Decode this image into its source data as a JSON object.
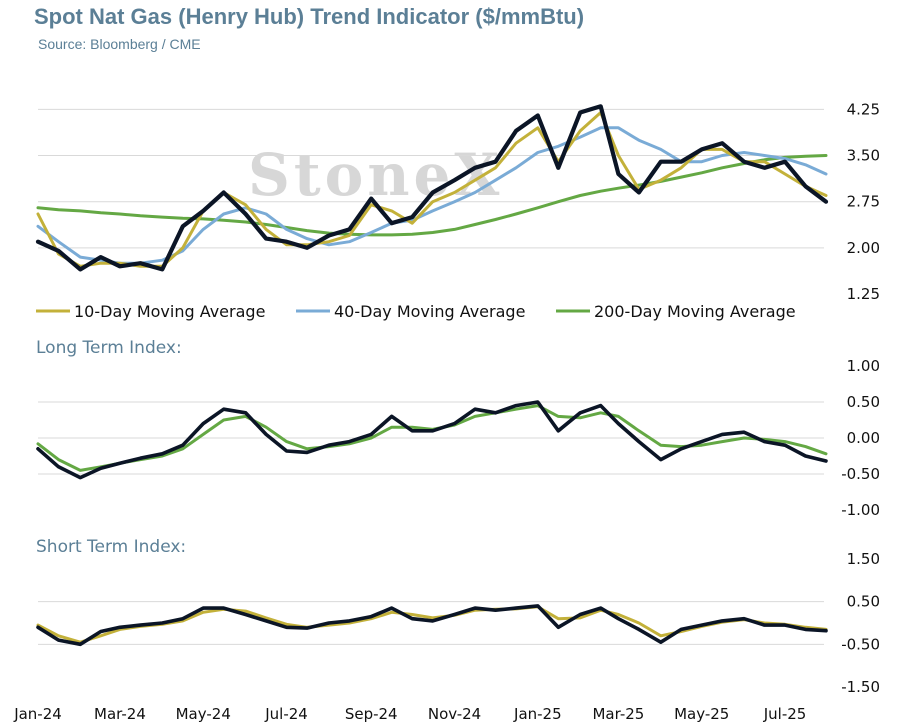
{
  "title": "Spot Nat Gas (Henry Hub) Trend Indicator ($/mmBtu)",
  "source": "Source: Bloomberg / CME",
  "watermark": "StoneX",
  "colors": {
    "spot": "#0b1526",
    "ma10": "#c3b13a",
    "ma40": "#7aabd6",
    "ma200": "#64a844",
    "title": "#5b7f96"
  },
  "chart_data": [
    {
      "type": "line",
      "panel": "price",
      "title": "Spot Nat Gas (Henry Hub) Trend Indicator ($/mmBtu)",
      "ylim": [
        1.25,
        4.5
      ],
      "yticks": [
        "4.25",
        "3.50",
        "2.75",
        "2.00",
        "1.25"
      ],
      "grid": true,
      "legend": "bottom",
      "x": [
        "2024-01-01",
        "2024-01-16",
        "2024-02-01",
        "2024-02-16",
        "2024-03-01",
        "2024-03-16",
        "2024-04-01",
        "2024-04-16",
        "2024-05-01",
        "2024-05-16",
        "2024-06-01",
        "2024-06-16",
        "2024-07-01",
        "2024-07-16",
        "2024-08-01",
        "2024-08-16",
        "2024-09-01",
        "2024-09-16",
        "2024-10-01",
        "2024-10-16",
        "2024-11-01",
        "2024-11-16",
        "2024-12-01",
        "2024-12-16",
        "2025-01-01",
        "2025-01-16",
        "2025-02-01",
        "2025-02-16",
        "2025-03-01",
        "2025-03-16",
        "2025-04-01",
        "2025-04-16",
        "2025-05-01",
        "2025-05-16",
        "2025-06-01",
        "2025-06-16",
        "2025-07-01",
        "2025-07-16",
        "2025-07-31"
      ],
      "series": [
        {
          "name": "Spot",
          "values": [
            2.1,
            1.95,
            1.65,
            1.85,
            1.7,
            1.75,
            1.65,
            2.35,
            2.6,
            2.9,
            2.55,
            2.15,
            2.1,
            2.0,
            2.2,
            2.3,
            2.8,
            2.4,
            2.5,
            2.9,
            3.1,
            3.3,
            3.4,
            3.9,
            4.15,
            3.3,
            4.2,
            4.3,
            3.2,
            2.9,
            3.4,
            3.4,
            3.6,
            3.7,
            3.4,
            3.3,
            3.4,
            3.0,
            2.75
          ]
        },
        {
          "name": "10-Day Moving Average",
          "values": [
            2.55,
            1.9,
            1.7,
            1.75,
            1.75,
            1.7,
            1.7,
            2.0,
            2.6,
            2.9,
            2.7,
            2.3,
            2.05,
            2.05,
            2.1,
            2.2,
            2.7,
            2.6,
            2.4,
            2.75,
            2.9,
            3.1,
            3.3,
            3.7,
            3.95,
            3.4,
            3.9,
            4.2,
            3.5,
            2.95,
            3.1,
            3.3,
            3.6,
            3.6,
            3.4,
            3.4,
            3.2,
            3.0,
            2.85
          ]
        },
        {
          "name": "40-Day Moving Average",
          "values": [
            2.35,
            2.1,
            1.85,
            1.8,
            1.75,
            1.75,
            1.8,
            1.95,
            2.3,
            2.55,
            2.65,
            2.55,
            2.3,
            2.15,
            2.05,
            2.1,
            2.25,
            2.4,
            2.45,
            2.6,
            2.75,
            2.9,
            3.1,
            3.3,
            3.55,
            3.65,
            3.8,
            3.95,
            3.95,
            3.75,
            3.6,
            3.4,
            3.4,
            3.5,
            3.55,
            3.5,
            3.45,
            3.35,
            3.2
          ]
        },
        {
          "name": "200-Day Moving Average",
          "values": [
            2.65,
            2.62,
            2.6,
            2.57,
            2.55,
            2.52,
            2.5,
            2.48,
            2.47,
            2.45,
            2.42,
            2.38,
            2.33,
            2.28,
            2.24,
            2.22,
            2.21,
            2.21,
            2.22,
            2.25,
            2.3,
            2.38,
            2.46,
            2.55,
            2.65,
            2.75,
            2.85,
            2.92,
            2.97,
            3.02,
            3.08,
            3.15,
            3.22,
            3.3,
            3.37,
            3.43,
            3.47,
            3.49,
            3.5
          ]
        }
      ]
    },
    {
      "type": "line",
      "panel": "long",
      "title": "Long Term Index:",
      "ylim": [
        -1.0,
        1.0
      ],
      "yticks": [
        "1.00",
        "0.50",
        "0.00",
        "-0.50",
        "-1.00"
      ],
      "grid": true,
      "x": [
        "2024-01-01",
        "2024-01-16",
        "2024-02-01",
        "2024-02-16",
        "2024-03-01",
        "2024-03-16",
        "2024-04-01",
        "2024-04-16",
        "2024-05-01",
        "2024-05-16",
        "2024-06-01",
        "2024-06-16",
        "2024-07-01",
        "2024-07-16",
        "2024-08-01",
        "2024-08-16",
        "2024-09-01",
        "2024-09-16",
        "2024-10-01",
        "2024-10-16",
        "2024-11-01",
        "2024-11-16",
        "2024-12-01",
        "2024-12-16",
        "2025-01-01",
        "2025-01-16",
        "2025-02-01",
        "2025-02-16",
        "2025-03-01",
        "2025-03-16",
        "2025-04-01",
        "2025-04-16",
        "2025-05-01",
        "2025-05-16",
        "2025-06-01",
        "2025-06-16",
        "2025-07-01",
        "2025-07-16",
        "2025-07-31"
      ],
      "series": [
        {
          "name": "Long Term Index (black)",
          "values": [
            -0.15,
            -0.4,
            -0.55,
            -0.42,
            -0.35,
            -0.28,
            -0.22,
            -0.1,
            0.2,
            0.4,
            0.35,
            0.05,
            -0.18,
            -0.2,
            -0.1,
            -0.05,
            0.05,
            0.3,
            0.1,
            0.1,
            0.2,
            0.4,
            0.35,
            0.45,
            0.5,
            0.1,
            0.35,
            0.45,
            0.2,
            -0.05,
            -0.3,
            -0.15,
            -0.05,
            0.05,
            0.08,
            -0.05,
            -0.1,
            -0.25,
            -0.32
          ]
        },
        {
          "name": "Long Term Index (green)",
          "values": [
            -0.08,
            -0.3,
            -0.45,
            -0.4,
            -0.35,
            -0.3,
            -0.25,
            -0.15,
            0.05,
            0.25,
            0.3,
            0.15,
            -0.05,
            -0.15,
            -0.12,
            -0.08,
            0.0,
            0.15,
            0.15,
            0.12,
            0.18,
            0.3,
            0.35,
            0.4,
            0.45,
            0.3,
            0.28,
            0.35,
            0.3,
            0.1,
            -0.1,
            -0.12,
            -0.1,
            -0.05,
            0.0,
            -0.02,
            -0.05,
            -0.12,
            -0.22
          ]
        }
      ]
    },
    {
      "type": "line",
      "panel": "short",
      "title": "Short Term Index:",
      "ylim": [
        -1.5,
        1.5
      ],
      "yticks": [
        "1.50",
        "0.50",
        "-0.50",
        "-1.50"
      ],
      "grid": true,
      "x": [
        "2024-01-01",
        "2024-01-16",
        "2024-02-01",
        "2024-02-16",
        "2024-03-01",
        "2024-03-16",
        "2024-04-01",
        "2024-04-16",
        "2024-05-01",
        "2024-05-16",
        "2024-06-01",
        "2024-06-16",
        "2024-07-01",
        "2024-07-16",
        "2024-08-01",
        "2024-08-16",
        "2024-09-01",
        "2024-09-16",
        "2024-10-01",
        "2024-10-16",
        "2024-11-01",
        "2024-11-16",
        "2024-12-01",
        "2024-12-16",
        "2025-01-01",
        "2025-01-16",
        "2025-02-01",
        "2025-02-16",
        "2025-03-01",
        "2025-03-16",
        "2025-04-01",
        "2025-04-16",
        "2025-05-01",
        "2025-05-16",
        "2025-06-01",
        "2025-06-16",
        "2025-07-01",
        "2025-07-16",
        "2025-07-31"
      ],
      "series": [
        {
          "name": "Short Term Index (black)",
          "values": [
            -0.1,
            -0.4,
            -0.5,
            -0.2,
            -0.1,
            -0.05,
            0.0,
            0.1,
            0.35,
            0.35,
            0.2,
            0.05,
            -0.1,
            -0.12,
            0.0,
            0.05,
            0.15,
            0.35,
            0.1,
            0.05,
            0.2,
            0.35,
            0.3,
            0.35,
            0.4,
            -0.1,
            0.2,
            0.35,
            0.1,
            -0.15,
            -0.45,
            -0.15,
            -0.05,
            0.05,
            0.1,
            -0.05,
            -0.05,
            -0.15,
            -0.18
          ]
        },
        {
          "name": "Short Term Index (gold)",
          "values": [
            -0.05,
            -0.3,
            -0.45,
            -0.3,
            -0.15,
            -0.08,
            -0.03,
            0.05,
            0.25,
            0.32,
            0.28,
            0.12,
            -0.03,
            -0.1,
            -0.05,
            0.0,
            0.1,
            0.25,
            0.2,
            0.12,
            0.18,
            0.3,
            0.32,
            0.33,
            0.38,
            0.1,
            0.12,
            0.3,
            0.2,
            0.0,
            -0.3,
            -0.2,
            -0.08,
            0.02,
            0.08,
            0.0,
            -0.03,
            -0.1,
            -0.15
          ]
        }
      ]
    }
  ],
  "legend": [
    {
      "label": "10-Day Moving Average",
      "color": "#c3b13a"
    },
    {
      "label": "40-Day Moving Average",
      "color": "#7aabd6"
    },
    {
      "label": "200-Day Moving Average",
      "color": "#64a844"
    }
  ],
  "xticks": [
    {
      "label": "Jan-24",
      "date": "2024-01-01"
    },
    {
      "label": "Mar-24",
      "date": "2024-03-01"
    },
    {
      "label": "May-24",
      "date": "2024-05-01"
    },
    {
      "label": "Jul-24",
      "date": "2024-07-01"
    },
    {
      "label": "Sep-24",
      "date": "2024-09-01"
    },
    {
      "label": "Nov-24",
      "date": "2024-11-01"
    },
    {
      "label": "Jan-25",
      "date": "2025-01-01"
    },
    {
      "label": "Mar-25",
      "date": "2025-03-01"
    },
    {
      "label": "May-25",
      "date": "2025-05-01"
    },
    {
      "label": "Jul-25",
      "date": "2025-07-01"
    }
  ]
}
